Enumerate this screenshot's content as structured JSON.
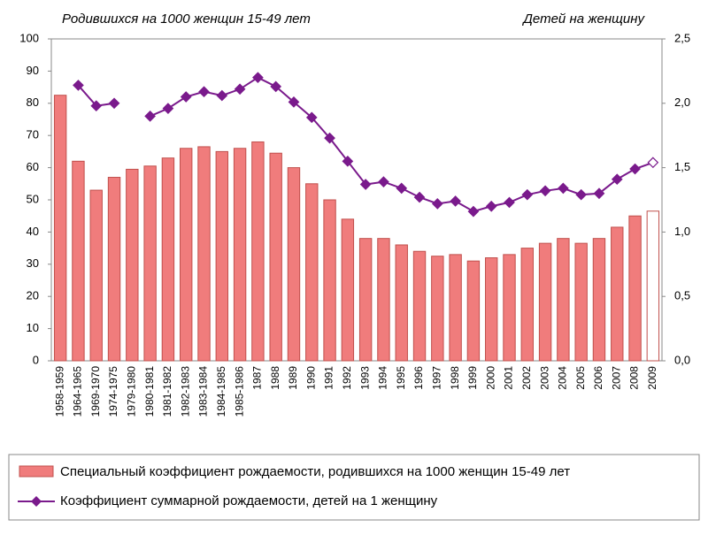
{
  "chart_data": {
    "type": "combo",
    "left_title": "Родившихся на 1000 женщин 15-49 лет",
    "right_title": "Детей на женщину",
    "categories": [
      "1958-1959",
      "1964-1965",
      "1969-1970",
      "1974-1975",
      "1979-1980",
      "1980-1981",
      "1981-1982",
      "1982-1983",
      "1983-1984",
      "1984-1985",
      "1985-1986",
      "1987",
      "1988",
      "1989",
      "1990",
      "1991",
      "1992",
      "1993",
      "1994",
      "1995",
      "1996",
      "1997",
      "1998",
      "1999",
      "2000",
      "2001",
      "2002",
      "2003",
      "2004",
      "2005",
      "2006",
      "2007",
      "2008",
      "2009"
    ],
    "series": [
      {
        "name": "Специальный коэффициент рождаемости, родившихся на 1000 женщин 15-49 лет",
        "type": "bar",
        "color": "#f07c7c",
        "edge_color": "#c0504d",
        "open_last": true,
        "values": [
          82.5,
          62,
          53,
          57,
          59.5,
          60.5,
          63,
          66,
          66.5,
          65,
          66,
          68,
          64.5,
          60,
          55,
          50,
          44,
          38,
          38,
          36,
          34,
          32.5,
          33,
          31,
          32,
          33,
          35,
          36.5,
          38,
          36.5,
          38,
          41.5,
          45,
          46.5
        ]
      },
      {
        "name": "Коэффициент суммарной рождаемости, детей на 1 женщину",
        "type": "line",
        "axis": "y2",
        "color": "#7a1a8c",
        "open_last": true,
        "values": [
          null,
          2.14,
          1.98,
          2.0,
          null,
          1.9,
          1.96,
          2.05,
          2.09,
          2.06,
          2.11,
          2.2,
          2.13,
          2.01,
          1.89,
          1.73,
          1.55,
          1.37,
          1.39,
          1.34,
          1.27,
          1.22,
          1.24,
          1.16,
          1.2,
          1.23,
          1.29,
          1.32,
          1.34,
          1.29,
          1.3,
          1.41,
          1.49,
          1.54
        ]
      }
    ],
    "ylim": [
      0,
      100
    ],
    "yticks": [
      0,
      10,
      20,
      30,
      40,
      50,
      60,
      70,
      80,
      90,
      100
    ],
    "y2lim": [
      0,
      2.5
    ],
    "y2ticks": [
      {
        "value": 0,
        "label": "0,0"
      },
      {
        "value": 0.5,
        "label": "0,5"
      },
      {
        "value": 1,
        "label": "1,0"
      },
      {
        "value": 1.5,
        "label": "1,5"
      },
      {
        "value": 2,
        "label": "2,0"
      },
      {
        "value": 2.5,
        "label": "2,5"
      }
    ]
  }
}
